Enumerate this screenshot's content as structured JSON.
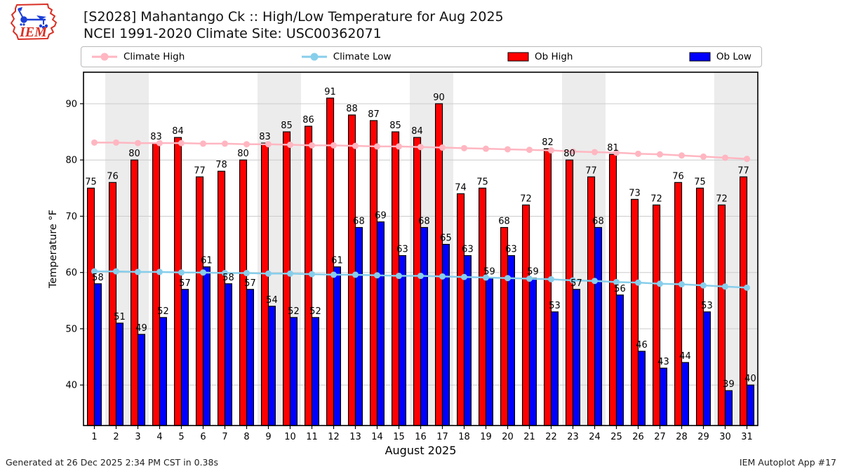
{
  "header": {
    "title_line1": "[S2028] Mahantango Ck :: High/Low Temperature for Aug 2025",
    "title_line2": "NCEI 1991-2020 Climate Site: USC00362071",
    "logo_text": "IEM"
  },
  "legend": {
    "items": [
      {
        "label": "Climate High",
        "marker": "line-dot",
        "color": "#ffb6c1"
      },
      {
        "label": "Climate Low",
        "marker": "line-dot",
        "color": "#87ceeb"
      },
      {
        "label": "Ob High",
        "marker": "swatch",
        "color": "#ff0000"
      },
      {
        "label": "Ob Low",
        "marker": "swatch",
        "color": "#0000ff"
      }
    ]
  },
  "chart_data": {
    "type": "bar",
    "title": "[S2028] Mahantango Ck :: High/Low Temperature for Aug 2025",
    "subtitle": "NCEI 1991-2020 Climate Site: USC00362071",
    "xlabel": "August 2025",
    "ylabel": "Temperature °F",
    "categories": [
      1,
      2,
      3,
      4,
      5,
      6,
      7,
      8,
      9,
      10,
      11,
      12,
      13,
      14,
      15,
      16,
      17,
      18,
      19,
      20,
      21,
      22,
      23,
      24,
      25,
      26,
      27,
      28,
      29,
      30,
      31
    ],
    "series": [
      {
        "name": "Ob High",
        "type": "bar",
        "color": "#ff0000",
        "values": [
          75,
          76,
          80,
          83,
          84,
          77,
          78,
          80,
          83,
          85,
          86,
          91,
          88,
          87,
          85,
          84,
          90,
          74,
          75,
          68,
          72,
          82,
          80,
          77,
          81,
          73,
          72,
          76,
          75,
          72,
          77
        ]
      },
      {
        "name": "Ob Low",
        "type": "bar",
        "color": "#0000ff",
        "values": [
          58,
          51,
          49,
          52,
          57,
          61,
          58,
          57,
          54,
          52,
          52,
          61,
          68,
          69,
          63,
          68,
          65,
          63,
          59,
          63,
          59,
          53,
          57,
          68,
          56,
          46,
          43,
          44,
          53,
          39,
          40
        ]
      },
      {
        "name": "Climate High",
        "type": "line",
        "color": "#ffb6c1",
        "values": [
          83.1,
          83.1,
          83.0,
          83.0,
          83.0,
          82.9,
          82.9,
          82.8,
          82.8,
          82.7,
          82.6,
          82.6,
          82.5,
          82.4,
          82.4,
          82.3,
          82.2,
          82.1,
          82.0,
          81.9,
          81.8,
          81.7,
          81.5,
          81.4,
          81.3,
          81.1,
          81.0,
          80.8,
          80.6,
          80.4,
          80.2
        ]
      },
      {
        "name": "Climate Low",
        "type": "line",
        "color": "#87ceeb",
        "values": [
          60.2,
          60.2,
          60.1,
          60.1,
          60.0,
          60.0,
          59.9,
          59.9,
          59.8,
          59.8,
          59.7,
          59.6,
          59.6,
          59.5,
          59.4,
          59.4,
          59.3,
          59.2,
          59.1,
          59.0,
          58.9,
          58.8,
          58.6,
          58.5,
          58.3,
          58.2,
          58.0,
          57.9,
          57.7,
          57.5,
          57.3
        ]
      }
    ],
    "ylim": [
      32.8,
      95.6
    ],
    "xlim": [
      0.5,
      31.5
    ],
    "yticks": [
      40,
      50,
      60,
      70,
      80,
      90
    ],
    "grid": "horizontal",
    "legend_position": "top",
    "weekend_bands": [
      [
        1.5,
        3.5
      ],
      [
        8.5,
        10.5
      ],
      [
        15.5,
        17.5
      ],
      [
        22.5,
        24.5
      ],
      [
        29.5,
        31.5
      ]
    ],
    "weekend_band_color": "#ececec"
  },
  "footer": {
    "generated": "Generated at 26 Dec 2025 2:34 PM CST in 0.38s",
    "app": "IEM Autoplot App #17"
  }
}
